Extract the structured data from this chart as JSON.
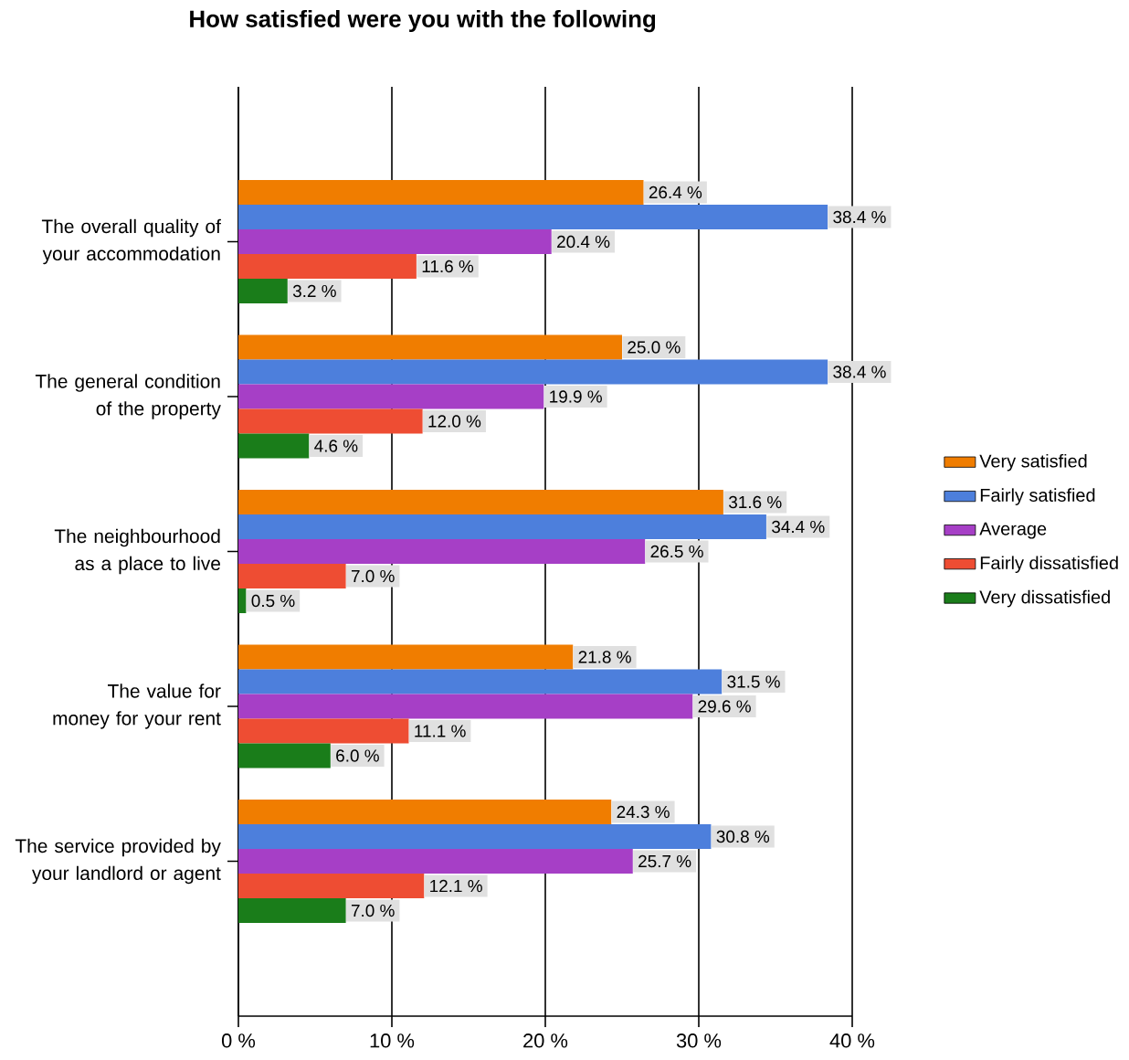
{
  "chart_data": {
    "type": "bar",
    "orientation": "horizontal",
    "title": "How satisfied were you with the following",
    "categories": [
      "The overall quality of your accommodation",
      "The general condition of the property",
      "The neighbourhood as a place to live",
      "The value for money for your rent",
      "The service provided by your landlord or agent"
    ],
    "series": [
      {
        "name": "Very satisfied",
        "color": "#f07d00",
        "values": [
          26.4,
          25.0,
          31.6,
          21.8,
          24.3
        ],
        "value_labels": [
          "26.4 %",
          "25.0 %",
          "31.6 %",
          "21.8 %",
          "24.3 %"
        ]
      },
      {
        "name": "Fairly satisfied",
        "color": "#4d7fdc",
        "values": [
          38.4,
          38.4,
          34.4,
          31.5,
          30.8
        ],
        "value_labels": [
          "38.4 %",
          "38.4 %",
          "34.4 %",
          "31.5 %",
          "30.8 %"
        ]
      },
      {
        "name": "Average",
        "color": "#a63fc6",
        "values": [
          20.4,
          19.9,
          26.5,
          29.6,
          25.7
        ],
        "value_labels": [
          "20.4 %",
          "19.9 %",
          "26.5 %",
          "29.6 %",
          "25.7 %"
        ]
      },
      {
        "name": "Fairly dissatisfied",
        "color": "#ee4d33",
        "values": [
          11.6,
          12.0,
          7.0,
          11.1,
          12.1
        ],
        "value_labels": [
          "11.6 %",
          "12.0 %",
          "7.0 %",
          "11.1 %",
          "12.1 %"
        ]
      },
      {
        "name": "Very dissatisfied",
        "color": "#1a7d1a",
        "values": [
          3.2,
          4.6,
          0.5,
          6.0,
          7.0
        ],
        "value_labels": [
          "3.2 %",
          "4.6 %",
          "0.5 %",
          "6.0 %",
          "7.0 %"
        ]
      }
    ],
    "xlim": [
      0,
      40
    ],
    "xticks": [
      {
        "value": 0,
        "label": "0 %"
      },
      {
        "value": 10,
        "label": "10 %"
      },
      {
        "value": 20,
        "label": "20 %"
      },
      {
        "value": 30,
        "label": "30 %"
      },
      {
        "value": 40,
        "label": "40 %"
      }
    ],
    "grid": "x",
    "legend": "right"
  }
}
